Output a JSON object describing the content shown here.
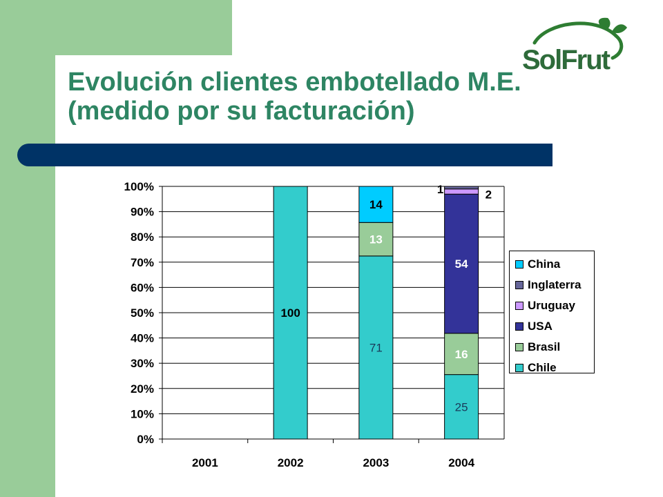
{
  "brand": {
    "logo_text": "SolFrut"
  },
  "slide": {
    "title_line1": "Evolución clientes embotellado M.E.",
    "title_line2": "(medido por su facturación)"
  },
  "colors": {
    "green_panel": "#99cc99",
    "title": "#2e8563",
    "band": "#003366"
  },
  "chart_data": {
    "type": "bar",
    "stacked": "percent",
    "categories": [
      "2001",
      "2002",
      "2003",
      "2004"
    ],
    "ylim": [
      0,
      100
    ],
    "yticks": [
      "0%",
      "10%",
      "20%",
      "30%",
      "40%",
      "50%",
      "60%",
      "70%",
      "80%",
      "90%",
      "100%"
    ],
    "grid": true,
    "legend_position": "right",
    "series": [
      {
        "name": "Chile",
        "color": "#33cccc",
        "values": [
          0,
          100,
          71,
          25
        ],
        "labels": [
          "",
          "100",
          "71",
          "25"
        ]
      },
      {
        "name": "Brasil",
        "color": "#99cc99",
        "values": [
          0,
          0,
          13,
          16
        ],
        "labels": [
          "",
          "",
          "13",
          "16"
        ]
      },
      {
        "name": "USA",
        "color": "#333399",
        "values": [
          0,
          0,
          0,
          54
        ],
        "labels": [
          "",
          "",
          "",
          "54"
        ]
      },
      {
        "name": "Uruguay",
        "color": "#cc99ff",
        "values": [
          0,
          0,
          0,
          2
        ],
        "labels": [
          "",
          "",
          "",
          "2"
        ]
      },
      {
        "name": "Inglaterra",
        "color": "#666699",
        "values": [
          0,
          0,
          0,
          1
        ],
        "labels": [
          "",
          "",
          "",
          "1"
        ]
      },
      {
        "name": "China",
        "color": "#00ccff",
        "values": [
          0,
          0,
          14,
          0
        ],
        "labels": [
          "",
          "",
          "14",
          ""
        ]
      }
    ],
    "legend_order": [
      "China",
      "Inglaterra",
      "Uruguay",
      "USA",
      "Brasil",
      "Chile"
    ]
  }
}
